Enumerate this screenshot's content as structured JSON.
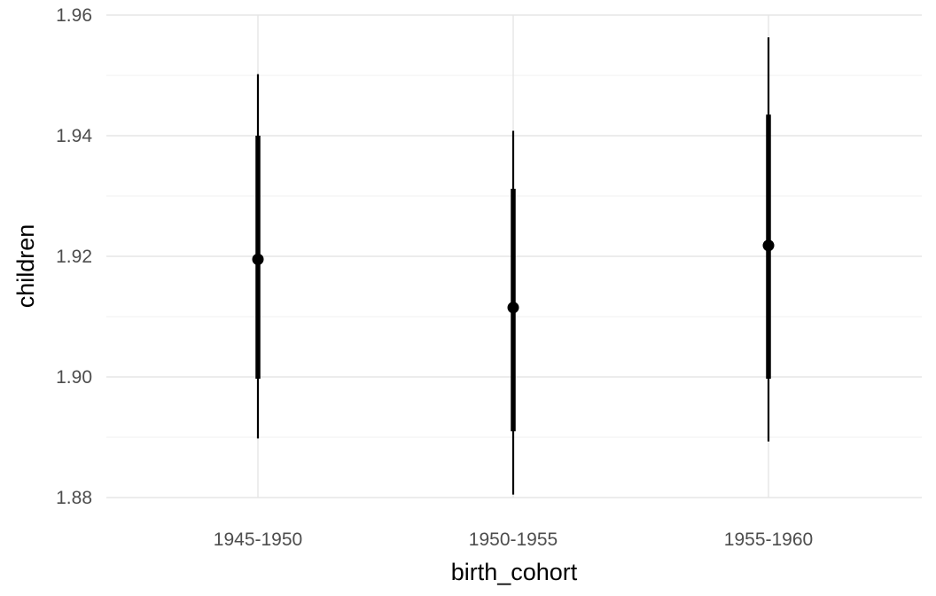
{
  "chart_data": {
    "type": "pointrange",
    "title": "",
    "xlabel": "birth_cohort",
    "ylabel": "children",
    "ylim": [
      1.88,
      1.96
    ],
    "y_ticks": [
      1.88,
      1.9,
      1.92,
      1.94,
      1.96
    ],
    "y_tick_labels": [
      "1.88",
      "1.90",
      "1.92",
      "1.94",
      "1.96"
    ],
    "grid": true,
    "legend": "none",
    "categories": [
      "1945-1950",
      "1950-1955",
      "1955-1960"
    ],
    "series": [
      {
        "name": "children",
        "points": [
          {
            "x": "1945-1950",
            "estimate": 1.9195,
            "inner_low": 1.8997,
            "inner_high": 1.94,
            "outer_low": 1.8898,
            "outer_high": 1.9502
          },
          {
            "x": "1950-1955",
            "estimate": 1.9115,
            "inner_low": 1.891,
            "inner_high": 1.9312,
            "outer_low": 1.8805,
            "outer_high": 1.9408
          },
          {
            "x": "1955-1960",
            "estimate": 1.9218,
            "inner_low": 1.8997,
            "inner_high": 1.9435,
            "outer_low": 1.8893,
            "outer_high": 1.9563
          }
        ]
      }
    ],
    "colors": {
      "mark": "#000000",
      "grid": "#e5e5e5",
      "tick_text": "#4d4d4d"
    }
  }
}
